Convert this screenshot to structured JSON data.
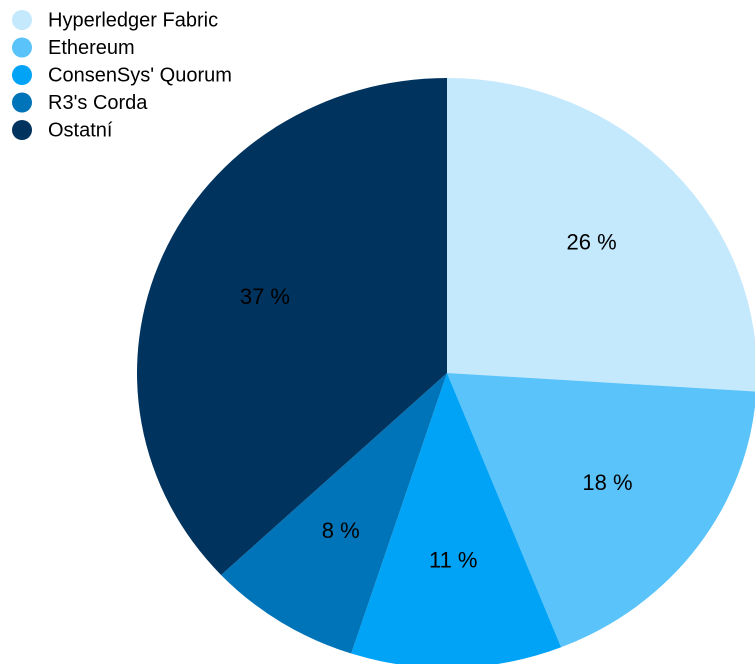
{
  "chart_data": {
    "type": "pie",
    "categories": [
      "Hyperledger Fabric",
      "Ethereum",
      "ConsenSys' Quorum",
      "R3's Corda",
      "Ostatní"
    ],
    "values": [
      26,
      18,
      11,
      8,
      37
    ],
    "value_labels": [
      "26 %",
      "18 %",
      "11 %",
      "8 %",
      "37 %"
    ],
    "colors": [
      "#c4e8fc",
      "#5ac3fa",
      "#00a3f6",
      "#0074b8",
      "#00335e"
    ],
    "legend": "top-left"
  }
}
